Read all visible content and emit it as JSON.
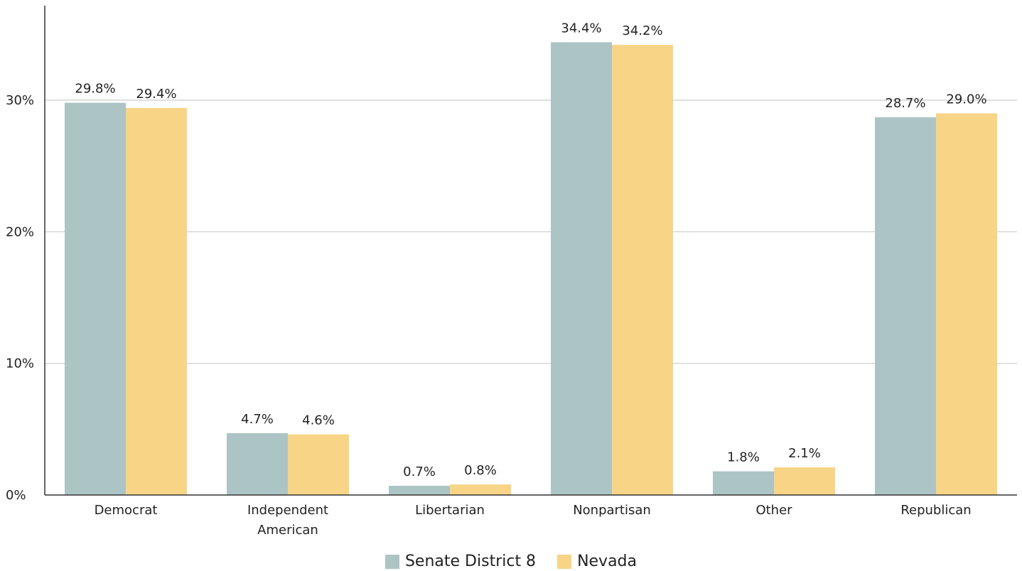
{
  "chart_data": {
    "type": "bar",
    "title": "",
    "xlabel": "",
    "ylabel": "",
    "categories": [
      "Democrat",
      "Independent American",
      "Libertarian",
      "Nonpartisan",
      "Other",
      "Republican"
    ],
    "category_lines": [
      [
        "Democrat"
      ],
      [
        "Independent",
        "American"
      ],
      [
        "Libertarian"
      ],
      [
        "Nonpartisan"
      ],
      [
        "Other"
      ],
      [
        "Republican"
      ]
    ],
    "series": [
      {
        "name": "Senate District 8",
        "color": "#adc4c5",
        "values": [
          29.8,
          4.7,
          0.7,
          34.4,
          1.8,
          28.7
        ],
        "labels": [
          "29.8%",
          "4.7%",
          "0.7%",
          "34.4%",
          "1.8%",
          "28.7%"
        ]
      },
      {
        "name": "Nevada",
        "color": "#f7d486",
        "values": [
          29.4,
          4.6,
          0.8,
          34.2,
          2.1,
          29.0
        ],
        "labels": [
          "29.4%",
          "4.6%",
          "0.8%",
          "34.2%",
          "2.1%",
          "29.0%"
        ]
      }
    ],
    "yticks": [
      0,
      10,
      20,
      30
    ],
    "ytick_labels": [
      "0%",
      "10%",
      "20%",
      "30%"
    ],
    "ylim": [
      0,
      37
    ],
    "grid": true,
    "legend_position": "bottom-center"
  }
}
